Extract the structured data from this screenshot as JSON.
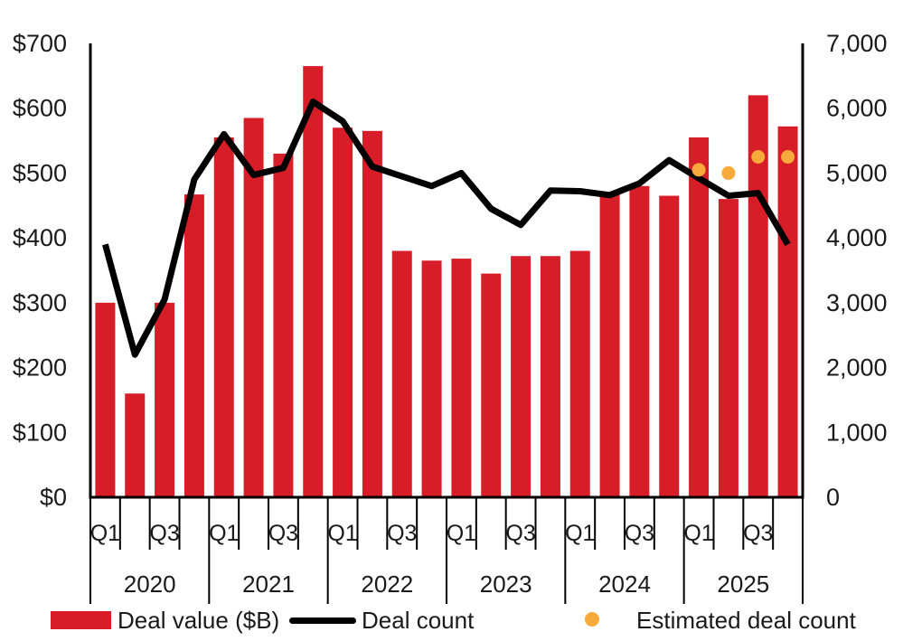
{
  "chart_data": {
    "type": "bar",
    "subtype": "combo-bar-line-scatter",
    "title": "",
    "categories": [
      "Q1 2020",
      "Q2 2020",
      "Q3 2020",
      "Q4 2020",
      "Q1 2021",
      "Q2 2021",
      "Q3 2021",
      "Q4 2021",
      "Q1 2022",
      "Q2 2022",
      "Q3 2022",
      "Q4 2022",
      "Q1 2023",
      "Q2 2023",
      "Q3 2023",
      "Q4 2023",
      "Q1 2024",
      "Q2 2024",
      "Q3 2024",
      "Q4 2024",
      "Q1 2025",
      "Q2 2025",
      "Q3 2025",
      "Q4 2025"
    ],
    "series": [
      {
        "name": "Deal value ($B)",
        "type": "bar",
        "axis": "left",
        "color": "#D71E28",
        "values": [
          300,
          160,
          300,
          467,
          555,
          585,
          530,
          665,
          570,
          565,
          380,
          365,
          368,
          345,
          372,
          372,
          380,
          467,
          480,
          465,
          555,
          460,
          620,
          572
        ]
      },
      {
        "name": "Deal count",
        "type": "line",
        "axis": "right",
        "color": "#000000",
        "values": [
          3900,
          2200,
          3050,
          4900,
          5600,
          4970,
          5080,
          6100,
          5800,
          5100,
          4950,
          4800,
          5000,
          4450,
          4200,
          4730,
          4720,
          4660,
          4840,
          5200,
          4920,
          4650,
          4690,
          3900
        ]
      },
      {
        "name": "Estimated deal count",
        "type": "scatter",
        "axis": "right",
        "color": "#F8A93B",
        "values": [
          null,
          null,
          null,
          null,
          null,
          null,
          null,
          null,
          null,
          null,
          null,
          null,
          null,
          null,
          null,
          null,
          null,
          null,
          null,
          null,
          5050,
          5000,
          5250,
          5250
        ]
      }
    ],
    "x_axis": {
      "years": [
        "2020",
        "2021",
        "2022",
        "2023",
        "2024",
        "2025"
      ],
      "quarter_tick_labels": [
        "Q1",
        "Q3"
      ],
      "quarters_per_year": 4
    },
    "left_axis": {
      "ticks": [
        "$0",
        "$100",
        "$200",
        "$300",
        "$400",
        "$500",
        "$600",
        "$700"
      ],
      "range": [
        0,
        700
      ]
    },
    "right_axis": {
      "ticks": [
        "0",
        "1,000",
        "2,000",
        "3,000",
        "4,000",
        "5,000",
        "6,000",
        "7,000"
      ],
      "range": [
        0,
        7000
      ]
    },
    "grid": false,
    "legend_position": "bottom"
  },
  "legend": {
    "deal_value_label": "Deal value ($B)",
    "deal_count_label": "Deal count",
    "estimated_label": "Estimated deal count"
  },
  "colors": {
    "bar_red": "#D71E28",
    "line_black": "#000000",
    "dot_orange": "#F8A93B",
    "text": "#1a1a1a",
    "axis": "#000000"
  }
}
